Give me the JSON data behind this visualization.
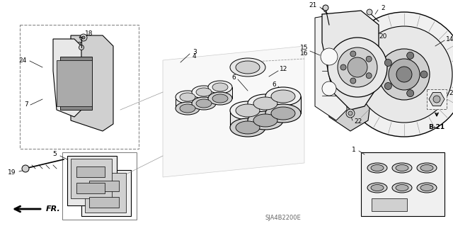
{
  "bg_color": "#ffffff",
  "diagram_code": "SJA4B2200E",
  "line_color": "#000000",
  "gray_fill": "#e8e8e8",
  "light_gray": "#f0f0f0",
  "mid_gray": "#d0d0d0",
  "dark_gray": "#b0b0b0",
  "figsize": [
    6.4,
    3.19
  ],
  "dpi": 100
}
